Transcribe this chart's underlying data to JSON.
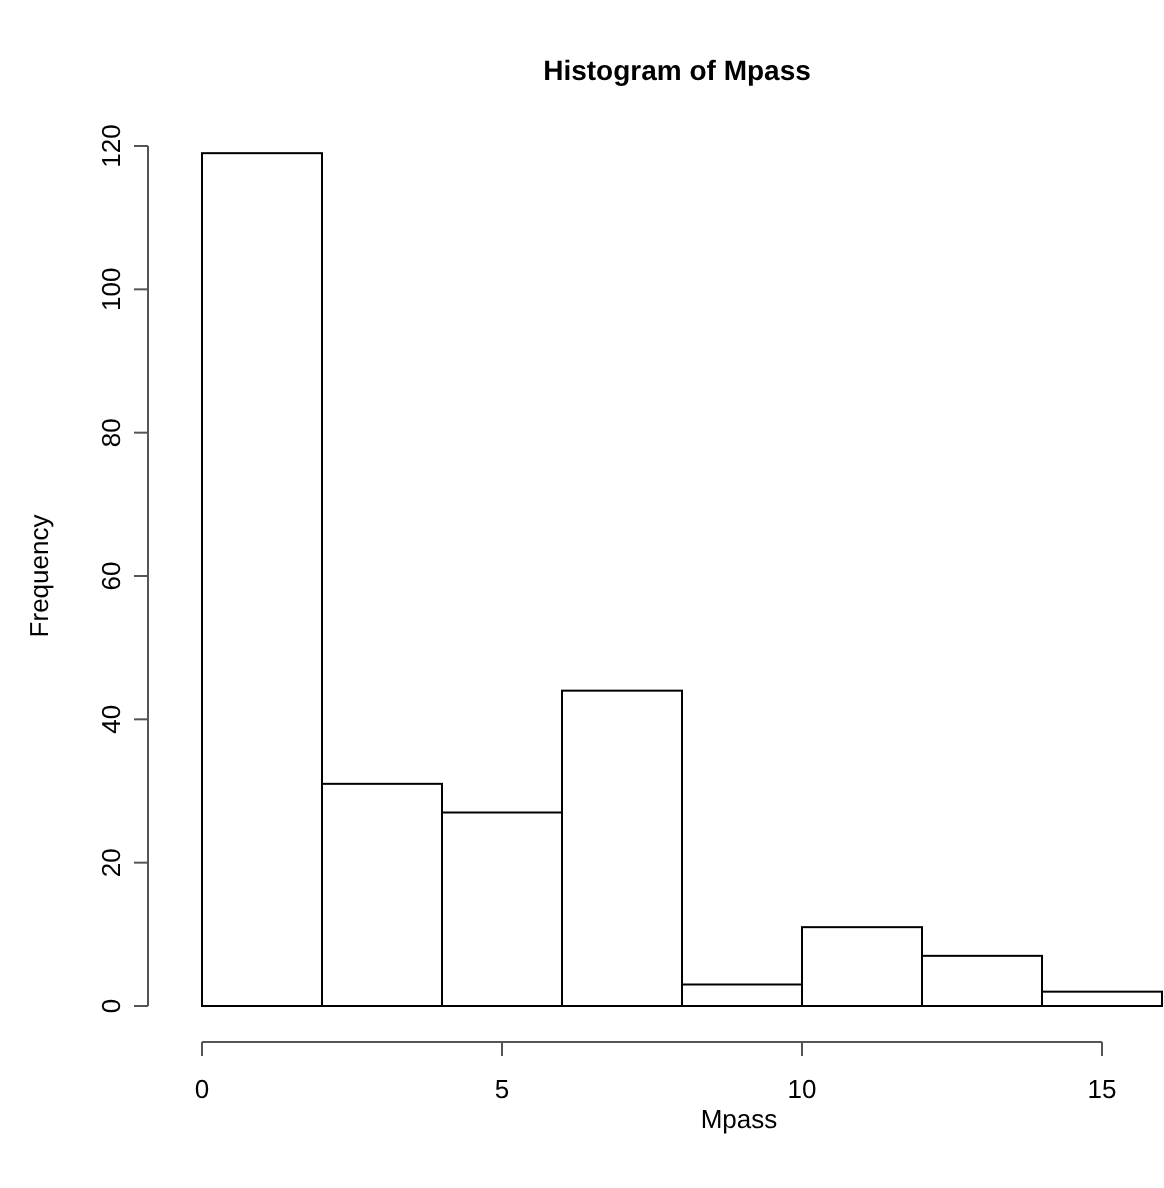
{
  "chart_data": {
    "type": "histogram",
    "title": "Histogram of Mpass",
    "xlabel": "Mpass",
    "ylabel": "Frequency",
    "bins": [
      0,
      2,
      4,
      6,
      8,
      10,
      12,
      14,
      16
    ],
    "values": [
      119,
      31,
      27,
      44,
      3,
      11,
      7,
      2
    ],
    "color": "#ffffff",
    "xlim": [
      0,
      16
    ],
    "xticks": [
      0,
      5,
      10,
      15
    ],
    "ylim": [
      0,
      120
    ],
    "yticks": [
      0,
      20,
      40,
      60,
      80,
      100,
      120
    ],
    "grid": false
  }
}
